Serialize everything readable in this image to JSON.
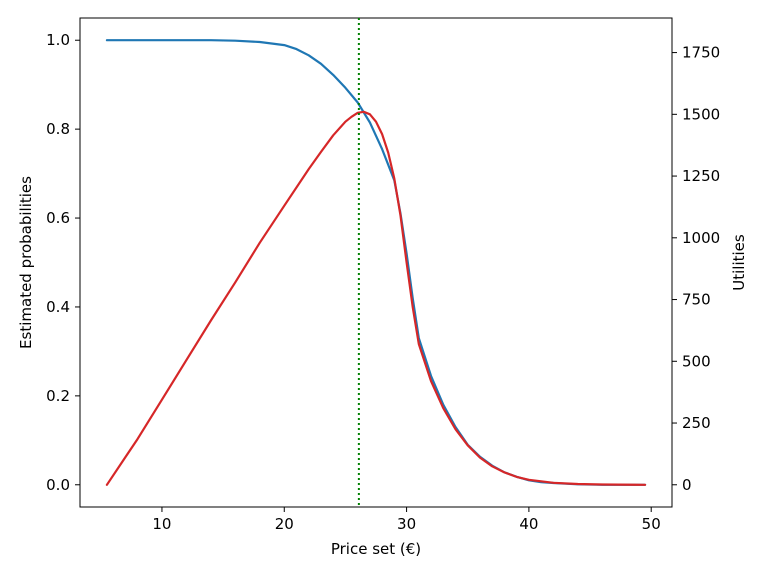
{
  "chart_data": {
    "type": "line",
    "title": "",
    "xlabel": "Price set (€)",
    "ylabel_left": "Estimated probabilities",
    "ylabel_right": "Utilities",
    "xlim": [
      3.3,
      51.7
    ],
    "ylim_left": [
      -0.05,
      1.05
    ],
    "ylim_right": [
      -90,
      1890
    ],
    "x_ticks": [
      10,
      20,
      30,
      40,
      50
    ],
    "y_left_ticks": [
      0.0,
      0.2,
      0.4,
      0.6,
      0.8,
      1.0
    ],
    "y_right_ticks": [
      0,
      250,
      500,
      750,
      1000,
      1250,
      1500,
      1750
    ],
    "grid": false,
    "legend": "none",
    "optimal_price_line": {
      "x": 26.1,
      "color": "#008000",
      "style": "dotted"
    },
    "series": [
      {
        "axis": "left",
        "color": "#1f77b4",
        "x": [
          5.5,
          8,
          10,
          12,
          14,
          16,
          18,
          20,
          21,
          22,
          23,
          24,
          25,
          26,
          27,
          28,
          29,
          29.5,
          30,
          30.5,
          31,
          32,
          33,
          34,
          35,
          36,
          37,
          38,
          39,
          40,
          41,
          42,
          44,
          46,
          48,
          49.5
        ],
        "values": [
          1.0,
          1.0,
          1.0,
          1.0,
          1.0,
          0.999,
          0.996,
          0.989,
          0.98,
          0.966,
          0.947,
          0.922,
          0.893,
          0.86,
          0.815,
          0.755,
          0.685,
          0.61,
          0.52,
          0.42,
          0.33,
          0.245,
          0.18,
          0.13,
          0.09,
          0.063,
          0.043,
          0.028,
          0.018,
          0.01,
          0.006,
          0.004,
          0.001,
          0.0,
          0.0,
          0.0
        ]
      },
      {
        "axis": "right",
        "color": "#d62728",
        "x": [
          5.5,
          8,
          10,
          12,
          14,
          16,
          18,
          20,
          22,
          23,
          24,
          25,
          25.5,
          26,
          26.5,
          27,
          27.5,
          28,
          28.5,
          29,
          29.5,
          30,
          30.5,
          31,
          32,
          33,
          34,
          35,
          36,
          37,
          38,
          39,
          40,
          42,
          44,
          46,
          49.5
        ],
        "values": [
          0,
          185,
          345,
          505,
          665,
          820,
          980,
          1130,
          1278,
          1348,
          1415,
          1470,
          1490,
          1506,
          1510,
          1500,
          1470,
          1420,
          1345,
          1240,
          1090,
          900,
          720,
          570,
          420,
          310,
          225,
          160,
          110,
          75,
          50,
          32,
          20,
          8,
          3,
          1,
          0
        ]
      }
    ]
  }
}
